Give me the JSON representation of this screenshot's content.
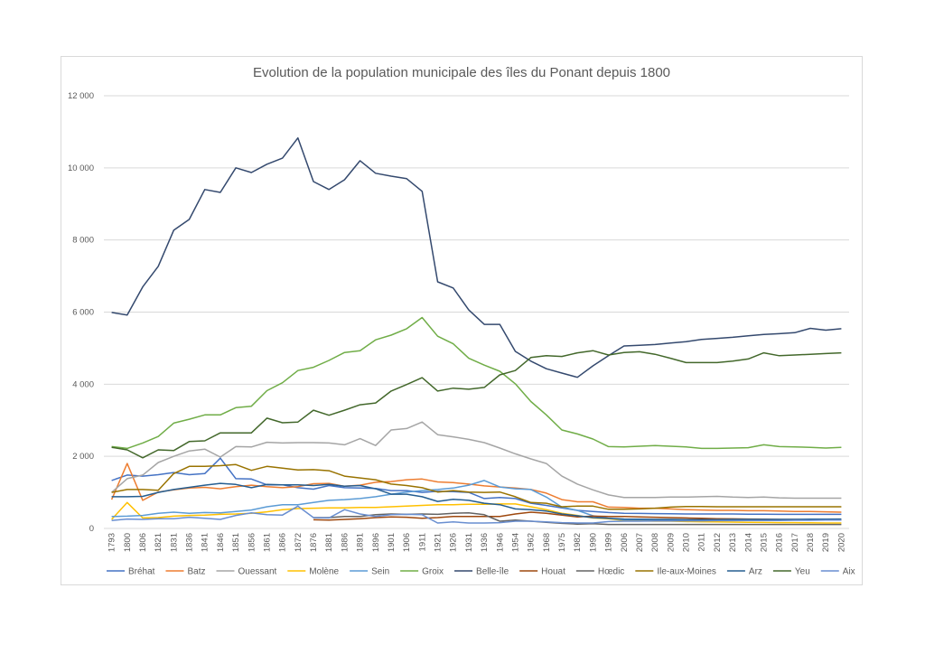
{
  "chart_data": {
    "type": "line",
    "title": "Evolution de la population municipale des îles du Ponant depuis 1800",
    "xlabel": "",
    "ylabel": "",
    "ylim": [
      0,
      12000
    ],
    "yticks": [
      0,
      2000,
      4000,
      6000,
      8000,
      10000,
      12000
    ],
    "ytick_labels": [
      "0",
      "2 000",
      "4 000",
      "6 000",
      "8 000",
      "10 000",
      "12 000"
    ],
    "grid": true,
    "legend_position": "bottom",
    "categories": [
      "1793",
      "1800",
      "1806",
      "1821",
      "1831",
      "1836",
      "1841",
      "1846",
      "1851",
      "1856",
      "1861",
      "1866",
      "1872",
      "1876",
      "1881",
      "1886",
      "1891",
      "1896",
      "1901",
      "1906",
      "1911",
      "1921",
      "1926",
      "1931",
      "1936",
      "1946",
      "1954",
      "1962",
      "1968",
      "1975",
      "1982",
      "1990",
      "1999",
      "2006",
      "2007",
      "2008",
      "2009",
      "2010",
      "2011",
      "2012",
      "2013",
      "2014",
      "2015",
      "2016",
      "2017",
      "2018",
      "2019",
      "2020"
    ],
    "series": [
      {
        "name": "Bréhat",
        "color": "#4472c4",
        "values": [
          1330,
          1480,
          1450,
          1490,
          1550,
          1490,
          1520,
          1950,
          1380,
          1370,
          1210,
          1210,
          1130,
          1090,
          1190,
          1130,
          1120,
          1110,
          1050,
          1050,
          1000,
          1030,
          1020,
          1000,
          830,
          860,
          830,
          700,
          640,
          570,
          500,
          470,
          440,
          420,
          415,
          410,
          405,
          400,
          400,
          400,
          400,
          395,
          395,
          390,
          390,
          390,
          390,
          390
        ]
      },
      {
        "name": "Batz",
        "color": "#ed7d31",
        "values": [
          800,
          1800,
          780,
          1010,
          1070,
          1120,
          1140,
          1100,
          1160,
          1200,
          1160,
          1130,
          1160,
          1240,
          1250,
          1170,
          1200,
          1280,
          1300,
          1350,
          1370,
          1290,
          1270,
          1230,
          1180,
          1150,
          1120,
          1080,
          980,
          800,
          740,
          740,
          590,
          580,
          560,
          560,
          540,
          520,
          510,
          500,
          500,
          490,
          490,
          480,
          470,
          470,
          460,
          450
        ]
      },
      {
        "name": "Ouessant",
        "color": "#a5a5a5",
        "values": [
          1000,
          1380,
          1480,
          1830,
          2000,
          2150,
          2200,
          1980,
          2270,
          2260,
          2390,
          2370,
          2380,
          2380,
          2370,
          2320,
          2490,
          2300,
          2730,
          2770,
          2950,
          2600,
          2540,
          2470,
          2380,
          2230,
          2070,
          1930,
          1800,
          1450,
          1230,
          1070,
          930,
          860,
          860,
          860,
          870,
          870,
          880,
          890,
          870,
          860,
          870,
          850,
          840,
          840,
          840,
          840
        ]
      },
      {
        "name": "Molène",
        "color": "#ffc000",
        "values": [
          250,
          720,
          290,
          300,
          340,
          360,
          370,
          390,
          400,
          420,
          460,
          520,
          550,
          560,
          570,
          570,
          580,
          580,
          600,
          620,
          640,
          660,
          660,
          670,
          670,
          680,
          680,
          600,
          520,
          420,
          360,
          290,
          270,
          220,
          210,
          200,
          200,
          190,
          185,
          180,
          175,
          170,
          165,
          160,
          160,
          155,
          150,
          150
        ]
      },
      {
        "name": "Sein",
        "color": "#5b9bd5",
        "values": [
          330,
          340,
          360,
          420,
          450,
          420,
          440,
          430,
          470,
          510,
          600,
          660,
          660,
          720,
          780,
          800,
          830,
          880,
          950,
          1010,
          1050,
          1080,
          1120,
          1200,
          1330,
          1150,
          1100,
          1080,
          870,
          590,
          500,
          350,
          280,
          240,
          240,
          240,
          240,
          235,
          235,
          235,
          235,
          235,
          235,
          230,
          230,
          230,
          230,
          230
        ]
      },
      {
        "name": "Groix",
        "color": "#70ad47",
        "values": [
          2270,
          2220,
          2370,
          2550,
          2920,
          3030,
          3150,
          3150,
          3350,
          3390,
          3820,
          4040,
          4380,
          4470,
          4660,
          4880,
          4930,
          5230,
          5360,
          5540,
          5850,
          5330,
          5120,
          4720,
          4530,
          4360,
          4010,
          3520,
          3150,
          2730,
          2620,
          2480,
          2270,
          2260,
          2280,
          2300,
          2280,
          2260,
          2220,
          2220,
          2230,
          2240,
          2320,
          2270,
          2260,
          2250,
          2230,
          2250
        ]
      },
      {
        "name": "Belle-île",
        "color": "#34496e",
        "values": [
          5990,
          5920,
          6700,
          7270,
          8270,
          8570,
          9400,
          9320,
          10000,
          9870,
          10100,
          10270,
          10830,
          9620,
          9400,
          9670,
          10200,
          9850,
          9770,
          9700,
          9350,
          6840,
          6670,
          6060,
          5660,
          5660,
          4910,
          4640,
          4430,
          4310,
          4190,
          4510,
          4790,
          5060,
          5080,
          5100,
          5140,
          5180,
          5240,
          5270,
          5300,
          5340,
          5380,
          5400,
          5430,
          5550,
          5500,
          5540
        ]
      },
      {
        "name": "Houat",
        "color": "#9e480e",
        "values": [
          null,
          null,
          null,
          null,
          null,
          null,
          null,
          null,
          null,
          null,
          null,
          null,
          null,
          240,
          230,
          250,
          270,
          300,
          320,
          310,
          280,
          300,
          330,
          330,
          330,
          330,
          400,
          450,
          420,
          370,
          320,
          340,
          330,
          330,
          320,
          310,
          300,
          290,
          280,
          270,
          265,
          260,
          255,
          250,
          250,
          245,
          245,
          240
        ]
      },
      {
        "name": "Hœdic",
        "color": "#636363",
        "values": [
          null,
          null,
          null,
          null,
          null,
          null,
          null,
          null,
          null,
          null,
          null,
          null,
          null,
          300,
          300,
          330,
          330,
          380,
          400,
          390,
          400,
          390,
          420,
          430,
          380,
          200,
          230,
          200,
          170,
          140,
          120,
          130,
          110,
          110,
          110,
          110,
          110,
          110,
          110,
          110,
          110,
          110,
          110,
          110,
          110,
          110,
          110,
          110
        ]
      },
      {
        "name": "Ile-aux-Moines",
        "color": "#997300",
        "values": [
          1000,
          1080,
          1080,
          1060,
          1520,
          1720,
          1720,
          1740,
          1770,
          1610,
          1720,
          1670,
          1620,
          1630,
          1600,
          1450,
          1400,
          1350,
          1230,
          1190,
          1130,
          1010,
          1050,
          1010,
          1000,
          1010,
          880,
          720,
          700,
          600,
          620,
          620,
          530,
          530,
          540,
          560,
          590,
          610,
          610,
          600,
          600,
          600,
          600,
          600,
          600,
          600,
          600,
          600
        ]
      },
      {
        "name": "Arz",
        "color": "#255e91",
        "values": [
          880,
          880,
          890,
          1000,
          1080,
          1140,
          1200,
          1250,
          1220,
          1130,
          1220,
          1210,
          1210,
          1190,
          1220,
          1170,
          1190,
          1100,
          950,
          950,
          880,
          750,
          810,
          780,
          700,
          660,
          540,
          520,
          480,
          400,
          350,
          300,
          280,
          260,
          255,
          250,
          250,
          245,
          245,
          245,
          250,
          250,
          250,
          250,
          250,
          255,
          255,
          260
        ]
      },
      {
        "name": "Yeu",
        "color": "#43682b",
        "values": [
          2250,
          2180,
          1960,
          2180,
          2160,
          2410,
          2430,
          2650,
          2650,
          2650,
          3060,
          2930,
          2950,
          3280,
          3140,
          3280,
          3430,
          3480,
          3810,
          3990,
          4180,
          3810,
          3890,
          3860,
          3910,
          4260,
          4380,
          4740,
          4790,
          4770,
          4870,
          4930,
          4810,
          4880,
          4900,
          4830,
          4720,
          4600,
          4600,
          4600,
          4640,
          4700,
          4870,
          4790,
          4810,
          4830,
          4850,
          4870
        ]
      },
      {
        "name": "Aix",
        "color": "#698ed0",
        "values": [
          220,
          260,
          250,
          270,
          270,
          310,
          280,
          250,
          360,
          430,
          380,
          370,
          620,
          300,
          290,
          520,
          400,
          330,
          380,
          390,
          380,
          150,
          180,
          150,
          150,
          160,
          200,
          200,
          180,
          160,
          150,
          150,
          190,
          200,
          200,
          205,
          205,
          210,
          210,
          215,
          215,
          220,
          220,
          220,
          225,
          225,
          230,
          230
        ]
      }
    ]
  }
}
